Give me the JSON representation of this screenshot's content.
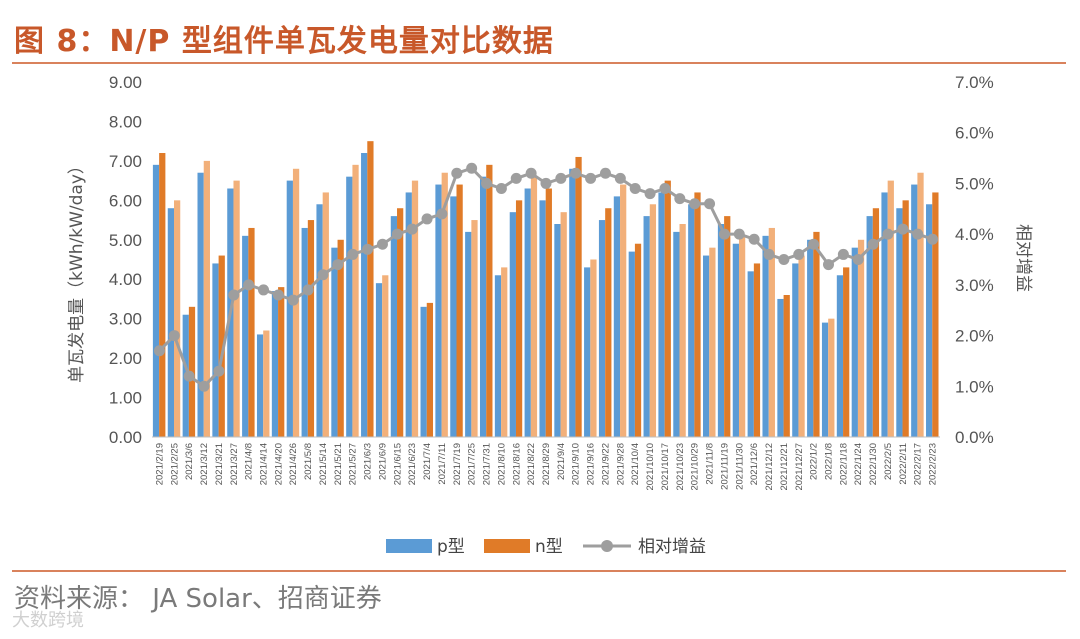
{
  "figure": {
    "title": "图 8：N/P 型组件单瓦发电量对比数据",
    "source": "资料来源：  JA Solar、招商证券",
    "watermark": "大数跨境"
  },
  "chart_data": {
    "type": "bar",
    "ylabel": "单瓦发电量（kWh/kW/day）",
    "y2label": "相对增益",
    "ylim": [
      0,
      9
    ],
    "y_ticks": [
      "0.00",
      "1.00",
      "2.00",
      "3.00",
      "4.00",
      "5.00",
      "6.00",
      "7.00",
      "8.00",
      "9.00"
    ],
    "y2lim": [
      0,
      0.07
    ],
    "y2_ticks": [
      "0.0%",
      "1.0%",
      "2.0%",
      "3.0%",
      "4.0%",
      "5.0%",
      "6.0%",
      "7.0%"
    ],
    "x_tick_labels": [
      "2021/2/19",
      "2021/2/25",
      "2021/3/6",
      "2021/3/12",
      "2021/3/21",
      "2021/3/27",
      "2021/4/8",
      "2021/4/14",
      "2021/4/20",
      "2021/4/26",
      "2021/5/8",
      "2021/5/14",
      "2021/5/21",
      "2021/5/27",
      "2021/6/3",
      "2021/6/9",
      "2021/6/15",
      "2021/6/23",
      "2021/7/4",
      "2021/7/11",
      "2021/7/19",
      "2021/7/25",
      "2021/7/31",
      "2021/8/10",
      "2021/8/16",
      "2021/8/22",
      "2021/8/29",
      "2021/9/4",
      "2021/9/10",
      "2021/9/16",
      "2021/9/22",
      "2021/9/28",
      "2021/10/4",
      "2021/10/10",
      "2021/10/17",
      "2021/10/23",
      "2021/10/29",
      "2021/11/8",
      "2021/11/19",
      "2021/11/30",
      "2021/12/6",
      "2021/12/12",
      "2021/12/21",
      "2021/12/27",
      "2022/1/2",
      "2022/1/8",
      "2022/1/18",
      "2022/1/24",
      "2022/1/30",
      "2022/2/5",
      "2022/2/11",
      "2022/2/17",
      "2022/2/23"
    ],
    "legend": {
      "placement": "bottom-center"
    },
    "series": [
      {
        "name": "p型",
        "type": "bar",
        "color": "#5b9bd5",
        "values": [
          6.9,
          5.8,
          3.1,
          6.7,
          4.4,
          6.3,
          5.1,
          2.6,
          3.7,
          6.5,
          5.3,
          5.9,
          4.8,
          6.6,
          7.2,
          3.9,
          5.6,
          6.2,
          3.3,
          6.4,
          6.1,
          5.2,
          6.6,
          4.1,
          5.7,
          6.3,
          6.0,
          5.4,
          6.8,
          4.3,
          5.5,
          6.1,
          4.7,
          5.6,
          6.2,
          5.2,
          5.9,
          4.6,
          5.4,
          4.9,
          4.2,
          5.1,
          3.5,
          4.4,
          5.0,
          2.9,
          4.1,
          4.8,
          5.6,
          6.2,
          5.8,
          6.4,
          5.9
        ]
      },
      {
        "name": "n型",
        "type": "bar",
        "color": "#e07b28",
        "values": [
          7.2,
          6.0,
          3.3,
          7.0,
          4.6,
          6.5,
          5.3,
          2.7,
          3.8,
          6.8,
          5.5,
          6.2,
          5.0,
          6.9,
          7.5,
          4.1,
          5.8,
          6.5,
          3.4,
          6.7,
          6.4,
          5.5,
          6.9,
          4.3,
          6.0,
          6.6,
          6.3,
          5.7,
          7.1,
          4.5,
          5.8,
          6.4,
          4.9,
          5.9,
          6.5,
          5.4,
          6.2,
          4.8,
          5.6,
          5.1,
          4.4,
          5.3,
          3.6,
          4.6,
          5.2,
          3.0,
          4.3,
          5.0,
          5.8,
          6.5,
          6.0,
          6.7,
          6.2
        ]
      },
      {
        "name": "相对增益",
        "type": "line",
        "color": "#9e9e9e",
        "values": [
          0.017,
          0.02,
          0.012,
          0.01,
          0.013,
          0.028,
          0.03,
          0.029,
          0.028,
          0.027,
          0.029,
          0.032,
          0.034,
          0.036,
          0.037,
          0.038,
          0.04,
          0.041,
          0.043,
          0.044,
          0.052,
          0.053,
          0.05,
          0.049,
          0.051,
          0.052,
          0.05,
          0.051,
          0.052,
          0.051,
          0.052,
          0.051,
          0.049,
          0.048,
          0.049,
          0.047,
          0.046,
          0.046,
          0.04,
          0.04,
          0.039,
          0.036,
          0.035,
          0.036,
          0.038,
          0.034,
          0.036,
          0.035,
          0.038,
          0.04,
          0.041,
          0.04,
          0.039
        ]
      }
    ]
  }
}
